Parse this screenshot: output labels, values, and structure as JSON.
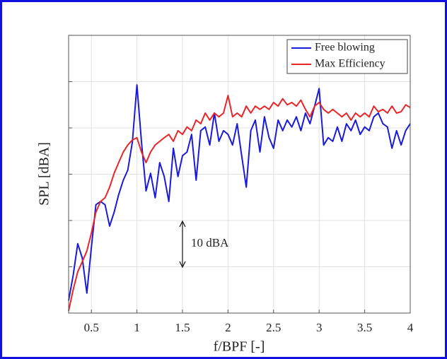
{
  "chart_data": {
    "type": "line",
    "xlabel": "f/BPF [-]",
    "ylabel": "SPL [dBA]",
    "annotation": "10 dBA",
    "xlim": [
      0.25,
      4
    ],
    "ylim": [
      0,
      60
    ],
    "xticks": [
      0.5,
      1,
      1.5,
      2,
      2.5,
      3,
      3.5,
      4
    ],
    "yticks": [
      0,
      10,
      20,
      30,
      40,
      50,
      60
    ],
    "grid": true,
    "legend": "upper right",
    "x": [
      0.25,
      0.3,
      0.35,
      0.4,
      0.45,
      0.5,
      0.55,
      0.6,
      0.65,
      0.7,
      0.75,
      0.8,
      0.85,
      0.9,
      0.95,
      1.0,
      1.05,
      1.1,
      1.15,
      1.2,
      1.25,
      1.3,
      1.35,
      1.4,
      1.45,
      1.5,
      1.55,
      1.6,
      1.65,
      1.7,
      1.75,
      1.8,
      1.85,
      1.9,
      1.95,
      2.0,
      2.05,
      2.1,
      2.15,
      2.2,
      2.25,
      2.3,
      2.35,
      2.4,
      2.45,
      2.5,
      2.55,
      2.6,
      2.65,
      2.7,
      2.75,
      2.8,
      2.85,
      2.9,
      2.95,
      3.0,
      3.05,
      3.1,
      3.15,
      3.2,
      3.25,
      3.3,
      3.35,
      3.4,
      3.45,
      3.5,
      3.55,
      3.6,
      3.65,
      3.7,
      3.75,
      3.8,
      3.85,
      3.9,
      3.95,
      4.0
    ],
    "series": [
      {
        "name": "Free blowing",
        "color": "#1a1adb",
        "values": [
          2.7,
          8.1,
          15.0,
          11.9,
          4.3,
          14.2,
          23.4,
          24.1,
          23.4,
          18.8,
          21.8,
          25.6,
          28.7,
          30.9,
          37.0,
          49.3,
          37.0,
          26.4,
          30.2,
          24.9,
          32.5,
          29.5,
          24.1,
          35.6,
          29.5,
          34.0,
          34.8,
          38.6,
          28.7,
          39.4,
          40.2,
          36.3,
          43.2,
          37.1,
          39.4,
          38.6,
          36.3,
          40.9,
          34.0,
          27.2,
          39.4,
          41.7,
          34.8,
          42.4,
          37.9,
          35.6,
          41.7,
          39.4,
          41.7,
          40.2,
          42.4,
          39.4,
          43.2,
          40.9,
          44.7,
          48.5,
          36.3,
          37.9,
          37.1,
          40.2,
          37.1,
          40.9,
          39.4,
          41.7,
          38.6,
          40.2,
          39.4,
          42.4,
          43.2,
          40.9,
          40.2,
          35.6,
          39.4,
          36.3,
          39.4,
          40.9
        ]
      },
      {
        "name": "Max Efficiency",
        "color": "#e8262a",
        "values": [
          0.5,
          5.0,
          8.9,
          11.1,
          13.4,
          17.3,
          21.8,
          24.1,
          24.9,
          27.2,
          30.2,
          32.5,
          34.8,
          36.3,
          37.4,
          37.9,
          34.8,
          32.5,
          34.8,
          36.3,
          37.1,
          37.9,
          38.6,
          37.1,
          39.4,
          38.6,
          40.2,
          39.4,
          41.7,
          40.9,
          43.2,
          41.7,
          43.2,
          42.4,
          43.2,
          47.0,
          42.4,
          43.2,
          42.4,
          44.7,
          43.2,
          44.7,
          44.0,
          44.7,
          44.0,
          45.5,
          44.7,
          46.3,
          45.0,
          45.5,
          44.7,
          46.0,
          44.0,
          42.4,
          44.7,
          45.5,
          44.0,
          43.2,
          44.0,
          43.2,
          42.4,
          43.2,
          41.7,
          43.2,
          42.4,
          43.2,
          42.4,
          44.7,
          43.5,
          44.0,
          43.2,
          44.7,
          43.2,
          43.5,
          45.0,
          44.4
        ]
      }
    ]
  }
}
